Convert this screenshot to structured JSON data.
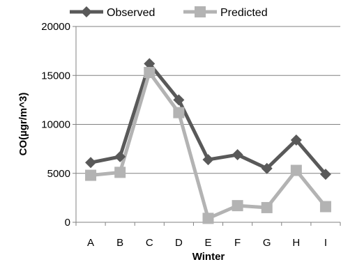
{
  "chart_data": {
    "type": "line",
    "title": "",
    "xlabel": "Winter",
    "ylabel": "CO(µgr/m^3)",
    "categories": [
      "A",
      "B",
      "C",
      "D",
      "E",
      "F",
      "G",
      "H",
      "I"
    ],
    "ylim": [
      0,
      20000
    ],
    "yticks": [
      0,
      5000,
      10000,
      15000,
      20000
    ],
    "yticks_labels": [
      "0",
      "5000",
      "10000",
      "15000",
      "20000"
    ],
    "grid": "horizontal",
    "legend_position": "top",
    "series": [
      {
        "name": "Observed",
        "values": [
          6100,
          6700,
          16200,
          12500,
          6400,
          6900,
          5500,
          8400,
          4900
        ],
        "color": "#595959",
        "marker": "diamond"
      },
      {
        "name": "Predicted",
        "values": [
          4800,
          5100,
          15300,
          11200,
          400,
          1700,
          1500,
          5300,
          1600
        ],
        "color": "#b3b3b3",
        "marker": "square"
      }
    ]
  }
}
